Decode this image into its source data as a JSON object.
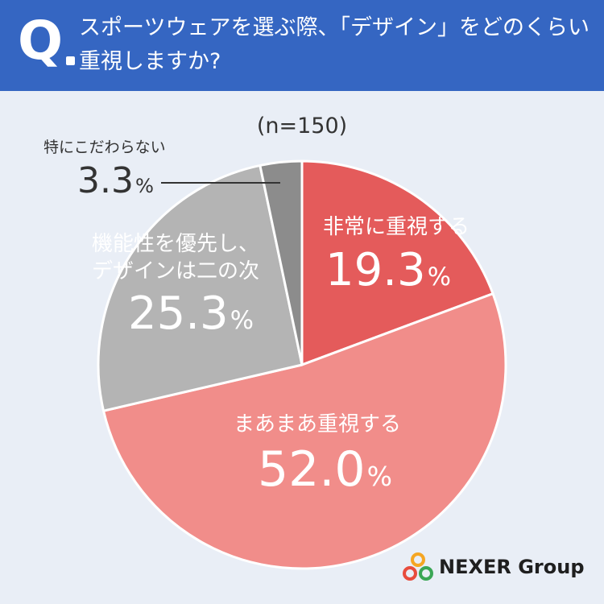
{
  "header": {
    "q_mark": "Q",
    "question_line1": "スポーツウェアを選ぶ際、「デザイン」をどのくらい",
    "question_line2": "重視しますか?"
  },
  "sample": "(n=150)",
  "chart_data": {
    "type": "pie",
    "start_angle_deg": 0,
    "direction": "clockwise",
    "slices": [
      {
        "label": "非常に重視する",
        "value": 19.3,
        "value_text": "19.3",
        "color": "#e45b5b"
      },
      {
        "label": "まあまあ重視する",
        "value": 52.0,
        "value_text": "52.0",
        "color": "#f18d8a"
      },
      {
        "label": "機能性を優先し、デザインは二の次",
        "label_lines": [
          "機能性を優先し、",
          "デザインは二の次"
        ],
        "value": 25.3,
        "value_text": "25.3",
        "color": "#b4b4b4"
      },
      {
        "label": "特にこだわらない",
        "value": 3.3,
        "value_text": "3.3",
        "color": "#8c8c8c"
      }
    ],
    "percent_sign": "%"
  },
  "logo": {
    "text": "NEXER Group",
    "icon": "nexer-rings-icon"
  }
}
